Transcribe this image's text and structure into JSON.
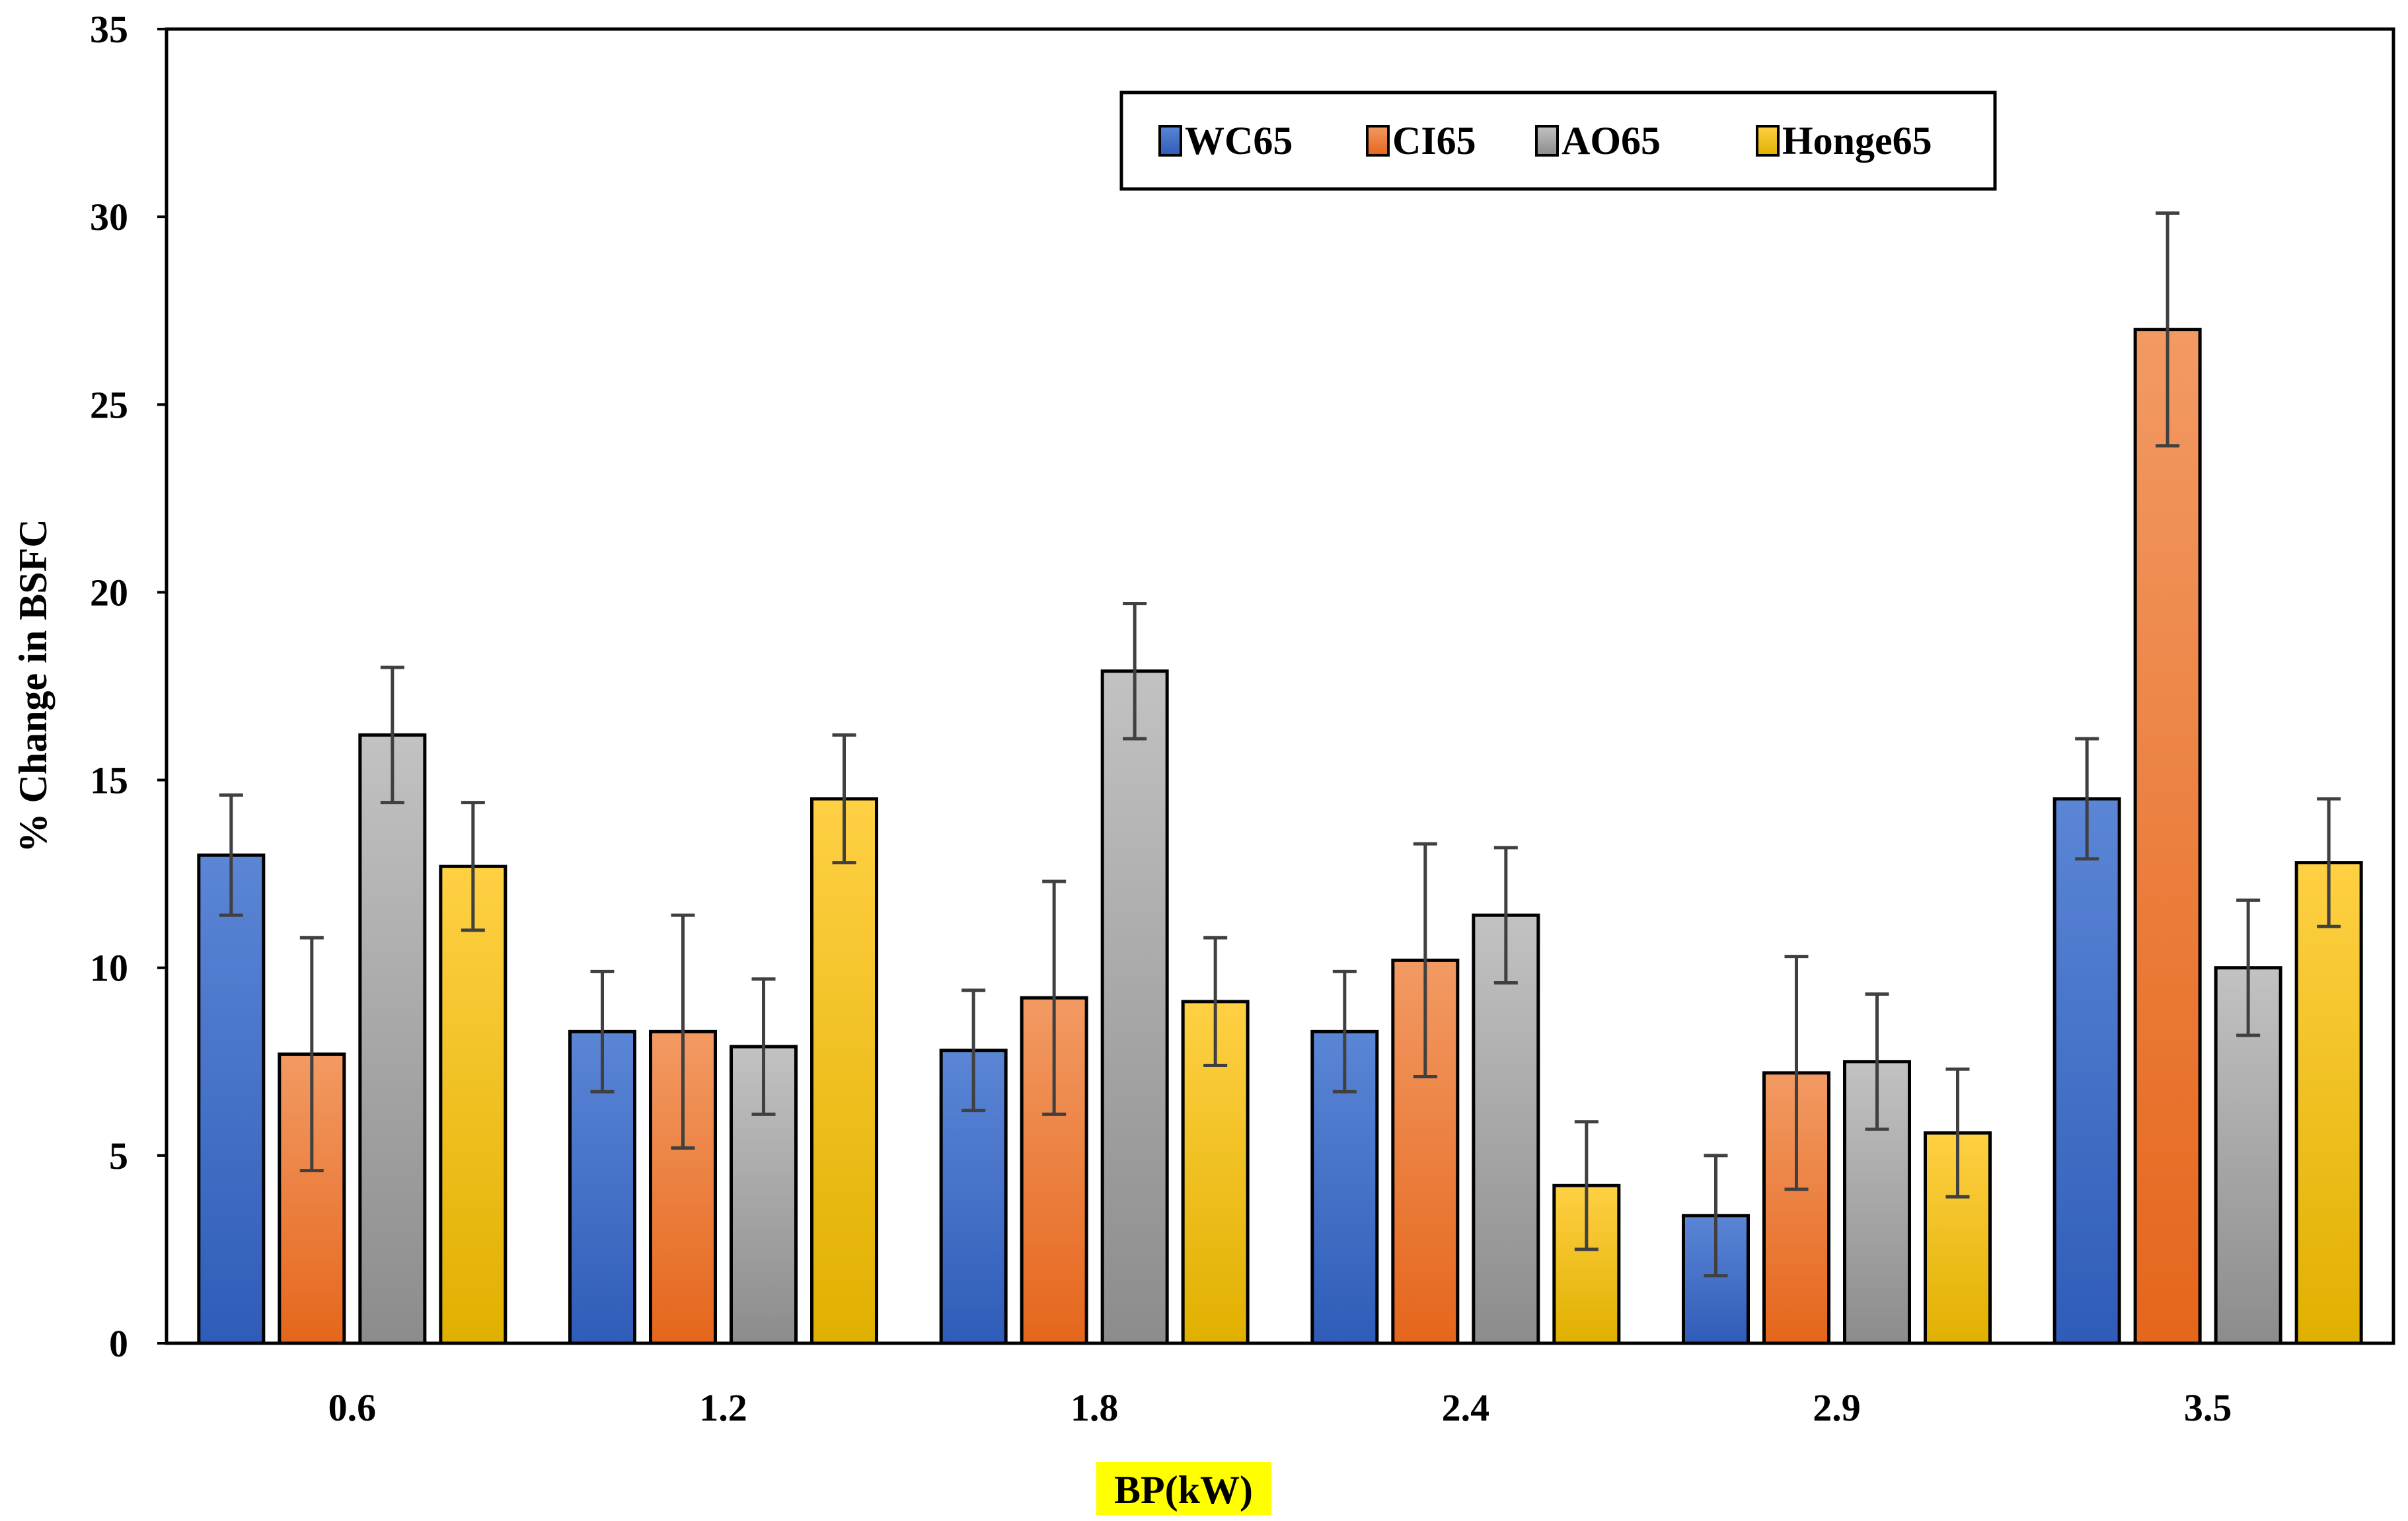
{
  "chart_data": {
    "type": "bar",
    "title": "",
    "xlabel": "BP(kW)",
    "ylabel": "% Change in BSFC",
    "categories": [
      "0.6",
      "1.2",
      "1.8",
      "2.4",
      "2.9",
      "3.5"
    ],
    "ylim": [
      0,
      35
    ],
    "yticks": [
      0,
      5,
      10,
      15,
      20,
      25,
      30,
      35
    ],
    "grid": false,
    "legend_position": "top-center",
    "xlabel_highlight": "#ffff00",
    "series": [
      {
        "name": "WC65",
        "color_top": "#5b86d6",
        "color_bottom": "#2f5cb8",
        "values": [
          13.0,
          8.3,
          7.8,
          8.3,
          3.4,
          14.5
        ],
        "errors": [
          1.6,
          1.6,
          1.6,
          1.6,
          1.6,
          1.6
        ]
      },
      {
        "name": "CI65",
        "color_top": "#f29a63",
        "color_bottom": "#e5661c",
        "values": [
          7.7,
          8.3,
          9.2,
          10.2,
          7.2,
          27.0
        ],
        "errors": [
          3.1,
          3.1,
          3.1,
          3.1,
          3.1,
          3.1
        ]
      },
      {
        "name": "AO65",
        "color_top": "#c2c2c2",
        "color_bottom": "#8c8c8c",
        "values": [
          16.2,
          7.9,
          17.9,
          11.4,
          7.5,
          10.0
        ],
        "errors": [
          1.8,
          1.8,
          1.8,
          1.8,
          1.8,
          1.8
        ]
      },
      {
        "name": "Honge65",
        "color_top": "#ffd043",
        "color_bottom": "#e0b000",
        "values": [
          12.7,
          14.5,
          9.1,
          4.2,
          5.6,
          12.8
        ],
        "errors": [
          1.7,
          1.7,
          1.7,
          1.7,
          1.7,
          1.7
        ]
      }
    ]
  }
}
